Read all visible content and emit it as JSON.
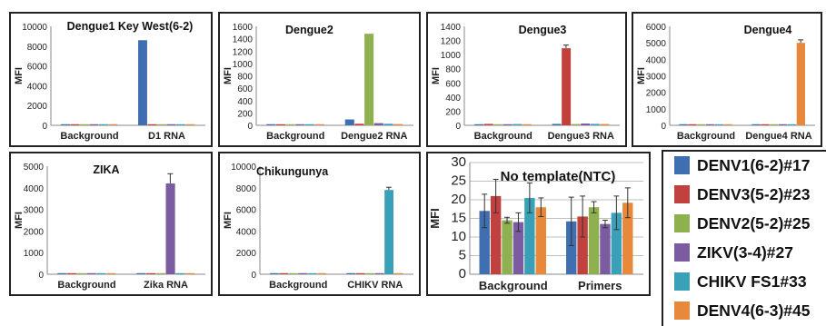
{
  "colors": [
    "#3f6fb0",
    "#c0413d",
    "#8fb04f",
    "#7b5ca0",
    "#3aa0b8",
    "#e8883a"
  ],
  "legend": {
    "items": [
      {
        "label": "DENV1(6-2)#17",
        "color": "#3f6fb0"
      },
      {
        "label": "DENV3(5-2)#23",
        "color": "#c0413d"
      },
      {
        "label": "DENV2(5-2)#25",
        "color": "#8fb04f"
      },
      {
        "label": "ZIKV(3-4)#27",
        "color": "#7b5ca0"
      },
      {
        "label": "CHIKV FS1#33",
        "color": "#3aa0b8"
      },
      {
        "label": "DENV4(6-3)#45",
        "color": "#e8883a"
      }
    ]
  },
  "chart_data": [
    {
      "type": "bar",
      "title": "Dengue1 Key West(6-2)",
      "ylabel": "MFI",
      "ylim": [
        0,
        10000
      ],
      "yticks": [
        "0",
        "2000",
        "4000",
        "6000",
        "8000",
        "10000"
      ],
      "categories": [
        "Background",
        "D1 RNA"
      ],
      "series": [
        {
          "name": "DENV1(6-2)#17",
          "values": [
            5,
            8600
          ],
          "errors": [
            0,
            0
          ]
        },
        {
          "name": "DENV3(5-2)#23",
          "values": [
            5,
            40
          ],
          "errors": [
            0,
            0
          ]
        },
        {
          "name": "DENV2(5-2)#25",
          "values": [
            5,
            30
          ],
          "errors": [
            0,
            0
          ]
        },
        {
          "name": "ZIKV(3-4)#27",
          "values": [
            5,
            30
          ],
          "errors": [
            0,
            0
          ]
        },
        {
          "name": "CHIKV FS1#33",
          "values": [
            5,
            20
          ],
          "errors": [
            0,
            0
          ]
        },
        {
          "name": "DENV4(6-3)#45",
          "values": [
            5,
            40
          ],
          "errors": [
            0,
            0
          ]
        }
      ]
    },
    {
      "type": "bar",
      "title": "Dengue2",
      "ylabel": "MFI",
      "ylim": [
        0,
        1600
      ],
      "yticks": [
        "0",
        "200",
        "400",
        "600",
        "800",
        "1000",
        "1200",
        "1400",
        "1600"
      ],
      "categories": [
        "Background",
        "Dengue2 RNA"
      ],
      "series": [
        {
          "name": "DENV1(6-2)#17",
          "values": [
            18,
            95
          ],
          "errors": [
            0,
            0
          ]
        },
        {
          "name": "DENV3(5-2)#23",
          "values": [
            15,
            25
          ],
          "errors": [
            0,
            0
          ]
        },
        {
          "name": "DENV2(5-2)#25",
          "values": [
            14,
            1480
          ],
          "errors": [
            0,
            0
          ]
        },
        {
          "name": "ZIKV(3-4)#27",
          "values": [
            14,
            35
          ],
          "errors": [
            0,
            0
          ]
        },
        {
          "name": "CHIKV FS1#33",
          "values": [
            16,
            25
          ],
          "errors": [
            0,
            0
          ]
        },
        {
          "name": "DENV4(6-3)#45",
          "values": [
            15,
            20
          ],
          "errors": [
            0,
            0
          ]
        }
      ]
    },
    {
      "type": "bar",
      "title": "Dengue3",
      "ylabel": "MFI",
      "ylim": [
        0,
        1400
      ],
      "yticks": [
        "0",
        "200",
        "400",
        "600",
        "800",
        "1000",
        "1200",
        "1400"
      ],
      "categories": [
        "Background",
        "Dengue3 RNA"
      ],
      "series": [
        {
          "name": "DENV1(6-2)#17",
          "values": [
            15,
            20
          ],
          "errors": [
            0,
            0
          ]
        },
        {
          "name": "DENV3(5-2)#23",
          "values": [
            20,
            1090
          ],
          "errors": [
            0,
            45
          ]
        },
        {
          "name": "DENV2(5-2)#25",
          "values": [
            15,
            18
          ],
          "errors": [
            0,
            0
          ]
        },
        {
          "name": "ZIKV(3-4)#27",
          "values": [
            14,
            25
          ],
          "errors": [
            0,
            0
          ]
        },
        {
          "name": "CHIKV FS1#33",
          "values": [
            18,
            20
          ],
          "errors": [
            0,
            0
          ]
        },
        {
          "name": "DENV4(6-3)#45",
          "values": [
            15,
            18
          ],
          "errors": [
            0,
            0
          ]
        }
      ]
    },
    {
      "type": "bar",
      "title": "Dengue4",
      "ylabel": "MFI",
      "ylim": [
        0,
        6000
      ],
      "yticks": [
        "0",
        "1000",
        "2000",
        "3000",
        "4000",
        "5000",
        "6000"
      ],
      "categories": [
        "Background",
        "Dengue4 RNA"
      ],
      "series": [
        {
          "name": "DENV1(6-2)#17",
          "values": [
            5,
            30
          ],
          "errors": [
            0,
            0
          ]
        },
        {
          "name": "DENV3(5-2)#23",
          "values": [
            5,
            20
          ],
          "errors": [
            0,
            0
          ]
        },
        {
          "name": "DENV2(5-2)#25",
          "values": [
            5,
            20
          ],
          "errors": [
            0,
            0
          ]
        },
        {
          "name": "ZIKV(3-4)#27",
          "values": [
            5,
            20
          ],
          "errors": [
            0,
            0
          ]
        },
        {
          "name": "CHIKV FS1#33",
          "values": [
            5,
            30
          ],
          "errors": [
            0,
            0
          ]
        },
        {
          "name": "DENV4(6-3)#45",
          "values": [
            5,
            5000
          ],
          "errors": [
            0,
            180
          ]
        }
      ]
    },
    {
      "type": "bar",
      "title": "ZIKA",
      "ylabel": "MFI",
      "ylim": [
        0,
        5000
      ],
      "yticks": [
        "0",
        "1000",
        "2000",
        "3000",
        "4000",
        "5000"
      ],
      "categories": [
        "Background",
        "Zika RNA"
      ],
      "series": [
        {
          "name": "DENV1(6-2)#17",
          "values": [
            15,
            30
          ],
          "errors": [
            0,
            0
          ]
        },
        {
          "name": "DENV3(5-2)#23",
          "values": [
            15,
            15
          ],
          "errors": [
            0,
            0
          ]
        },
        {
          "name": "DENV2(5-2)#25",
          "values": [
            15,
            15
          ],
          "errors": [
            0,
            0
          ]
        },
        {
          "name": "ZIKV(3-4)#27",
          "values": [
            15,
            4200
          ],
          "errors": [
            0,
            450
          ]
        },
        {
          "name": "CHIKV FS1#33",
          "values": [
            15,
            15
          ],
          "errors": [
            0,
            0
          ]
        },
        {
          "name": "DENV4(6-3)#45",
          "values": [
            15,
            15
          ],
          "errors": [
            0,
            0
          ]
        }
      ]
    },
    {
      "type": "bar",
      "title": "Chikungunya",
      "ylabel": "MFI",
      "ylim": [
        0,
        10000
      ],
      "yticks": [
        "0",
        "2000",
        "4000",
        "6000",
        "8000",
        "10000"
      ],
      "categories": [
        "Background",
        "CHIKV RNA"
      ],
      "series": [
        {
          "name": "DENV1(6-2)#17",
          "values": [
            5,
            5
          ],
          "errors": [
            0,
            0
          ]
        },
        {
          "name": "DENV3(5-2)#23",
          "values": [
            5,
            5
          ],
          "errors": [
            0,
            0
          ]
        },
        {
          "name": "DENV2(5-2)#25",
          "values": [
            5,
            5
          ],
          "errors": [
            0,
            0
          ]
        },
        {
          "name": "ZIKV(3-4)#27",
          "values": [
            5,
            5
          ],
          "errors": [
            0,
            0
          ]
        },
        {
          "name": "CHIKV FS1#33",
          "values": [
            5,
            7800
          ],
          "errors": [
            0,
            250
          ]
        },
        {
          "name": "DENV4(6-3)#45",
          "values": [
            5,
            5
          ],
          "errors": [
            0,
            0
          ]
        }
      ]
    },
    {
      "type": "bar",
      "title": "No template(NTC)",
      "ylabel": "MFI",
      "ylim": [
        0,
        30
      ],
      "yticks": [
        "0",
        "5",
        "10",
        "15",
        "20",
        "25",
        "30"
      ],
      "grid": true,
      "categories": [
        "Background",
        "Primers"
      ],
      "series": [
        {
          "name": "DENV1(6-2)#17",
          "values": [
            17,
            14.2
          ],
          "errors": [
            4.5,
            6.5
          ]
        },
        {
          "name": "DENV3(5-2)#23",
          "values": [
            21,
            15.5
          ],
          "errors": [
            4.5,
            5.5
          ]
        },
        {
          "name": "DENV2(5-2)#25",
          "values": [
            14.5,
            18
          ],
          "errors": [
            0.8,
            1.5
          ]
        },
        {
          "name": "ZIKV(3-4)#27",
          "values": [
            14,
            13.5
          ],
          "errors": [
            2.5,
            1.0
          ]
        },
        {
          "name": "CHIKV FS1#33",
          "values": [
            20.5,
            16.5
          ],
          "errors": [
            4.0,
            4.5
          ]
        },
        {
          "name": "DENV4(6-3)#45",
          "values": [
            18,
            19.2
          ],
          "errors": [
            2.5,
            4.0
          ]
        }
      ]
    }
  ]
}
